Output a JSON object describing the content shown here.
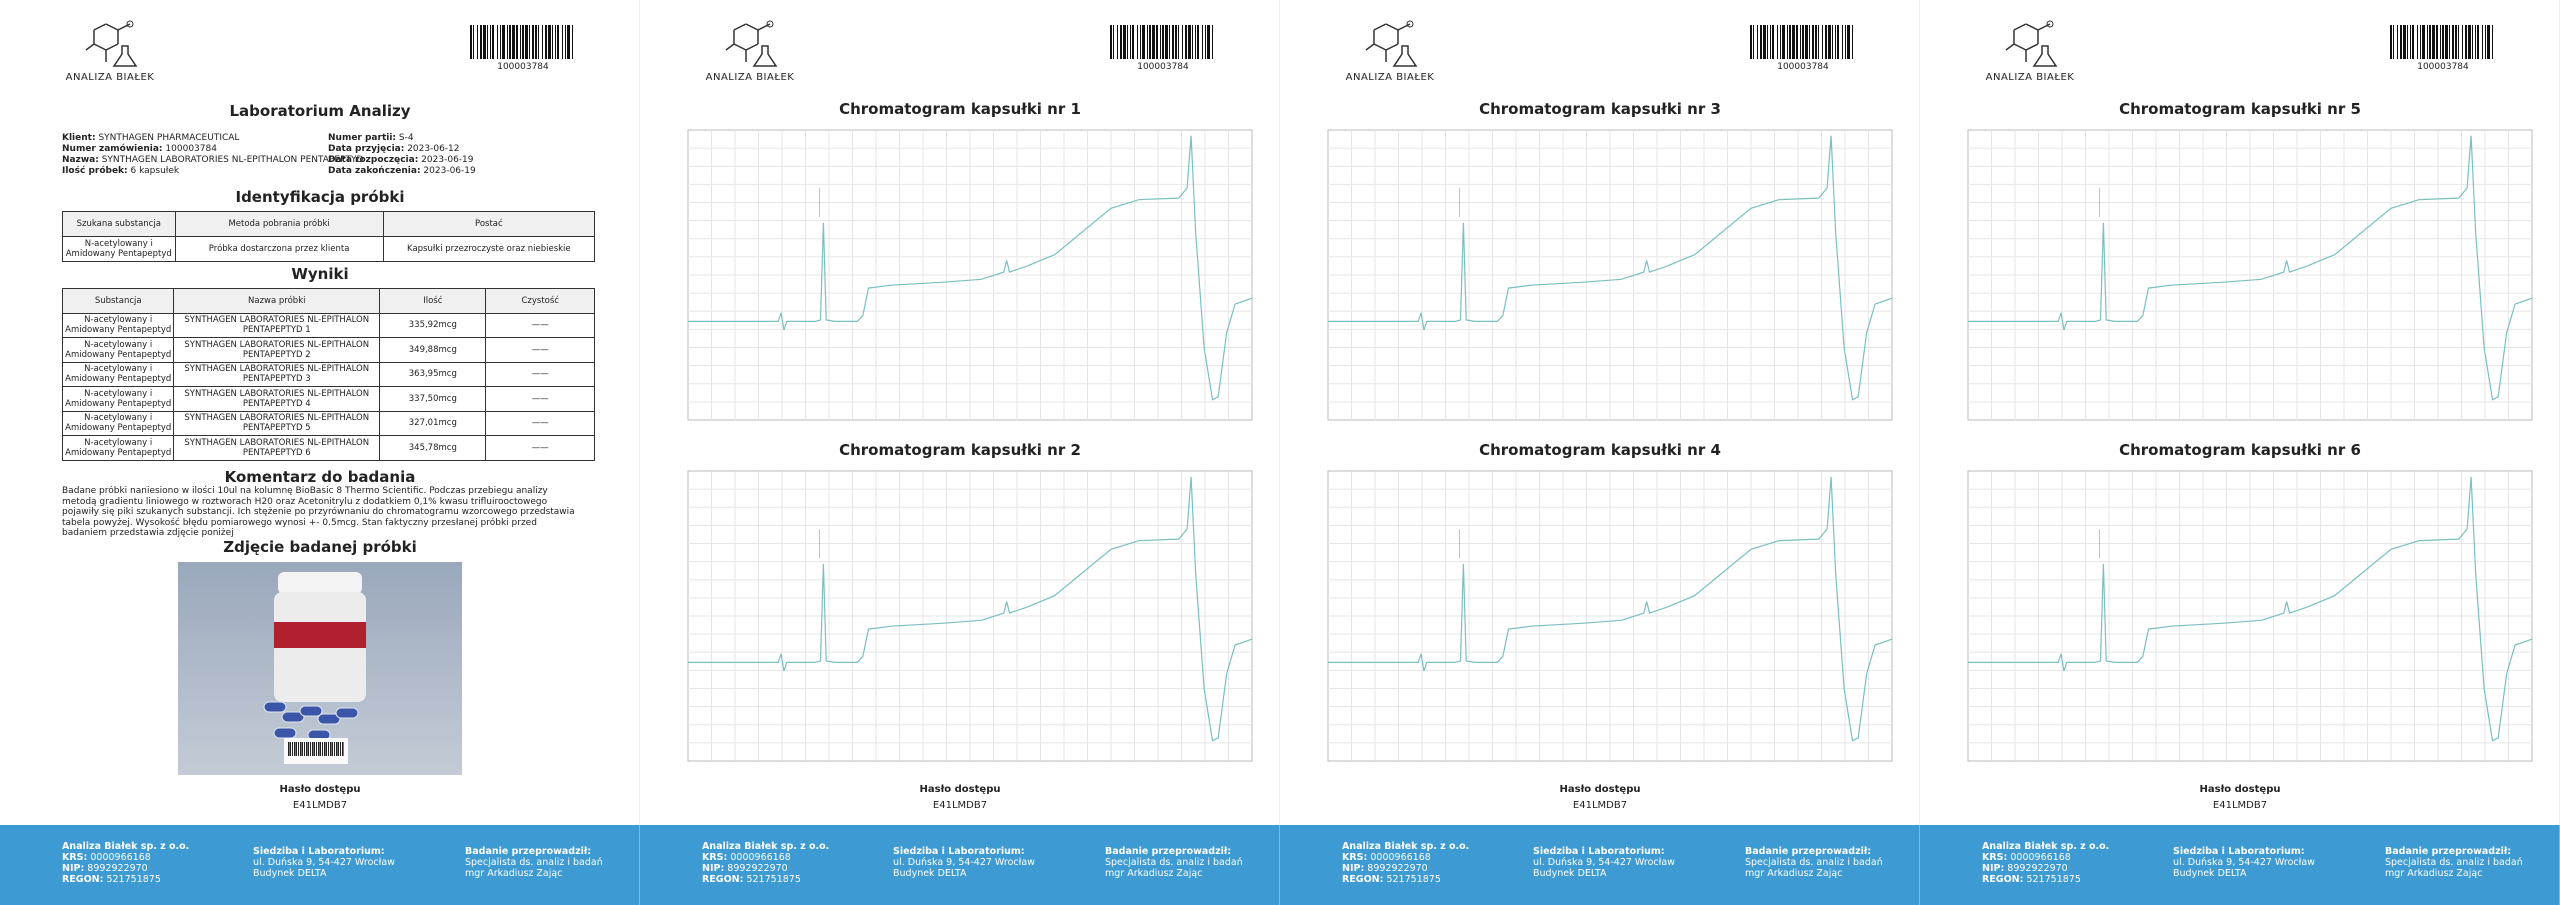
{
  "header": {
    "logo_text": "ANALIZA BIAŁEK",
    "barcode_number": "100003784"
  },
  "report": {
    "title": "Laboratorium Analizy",
    "info_left": [
      {
        "label": "Klient:",
        "value": "SYNTHAGEN PHARMACEUTICAL"
      },
      {
        "label": "Numer zamówienia:",
        "value": "100003784"
      },
      {
        "label": "Nazwa:",
        "value": "SYNTHAGEN LABORATORIES NL-EPITHALON PENTAPEPTYD"
      },
      {
        "label": "Ilość próbek:",
        "value": "6 kapsułek"
      }
    ],
    "info_right": [
      {
        "label": "Numer partii:",
        "value": "S-4"
      },
      {
        "label": "Data przyjęcia:",
        "value": "2023-06-12"
      },
      {
        "label": "Data rozpoczęcia:",
        "value": "2023-06-19"
      },
      {
        "label": "Data zakończenia:",
        "value": "2023-06-19"
      }
    ],
    "identification": {
      "title": "Identyfikacja próbki",
      "headers": [
        "Szukana substancja",
        "Metoda pobrania próbki",
        "Postać"
      ],
      "rows": [
        [
          "N-acetylowany i Amidowany Pentapeptyd",
          "Próbka dostarczona przez klienta",
          "Kapsułki przezroczyste oraz niebieskie"
        ]
      ]
    },
    "results": {
      "title": "Wyniki",
      "headers": [
        "Substancja",
        "Nazwa próbki",
        "Ilość",
        "Czystość"
      ],
      "rows": [
        [
          "N-acetylowany i Amidowany Pentapeptyd",
          "SYNTHAGEN LABORATORIES NL-EPITHALON PENTAPEPTYD 1",
          "335,92mcg",
          "——"
        ],
        [
          "N-acetylowany i Amidowany Pentapeptyd",
          "SYNTHAGEN LABORATORIES NL-EPITHALON PENTAPEPTYD 2",
          "349,88mcg",
          "——"
        ],
        [
          "N-acetylowany i Amidowany Pentapeptyd",
          "SYNTHAGEN LABORATORIES NL-EPITHALON PENTAPEPTYD 3",
          "363,95mcg",
          "——"
        ],
        [
          "N-acetylowany i Amidowany Pentapeptyd",
          "SYNTHAGEN LABORATORIES NL-EPITHALON PENTAPEPTYD 4",
          "337,50mcg",
          "——"
        ],
        [
          "N-acetylowany i Amidowany Pentapeptyd",
          "SYNTHAGEN LABORATORIES NL-EPITHALON PENTAPEPTYD 5",
          "327,01mcg",
          "——"
        ],
        [
          "N-acetylowany i Amidowany Pentapeptyd",
          "SYNTHAGEN LABORATORIES NL-EPITHALON PENTAPEPTYD 6",
          "345,78mcg",
          "——"
        ]
      ]
    },
    "comment": {
      "title": "Komentarz do badania",
      "text": "Badane próbki naniesiono w ilości 10ul na kolumnę BioBasic 8 Thermo Scientific. Podczas przebiegu analizy metodą gradientu liniowego w roztworach H20 oraz Acetonitrylu z dodatkiem 0,1% kwasu trifluirooctowego pojawiły się piki szukanych substancji. Ich stężenie po przyrównaniu do chromatogramu wzorcowego przedstawia tabela powyżej. Wysokość błędu pomiarowego wynosi +- 0.5mcg. Stan faktyczny przesłanej próbki przed badaniem przedstawia zdjęcie poniżej"
    },
    "photo": {
      "title": "Zdjęcie badanej próbki"
    }
  },
  "chromatograms": [
    "Chromatogram kapsułki nr 1",
    "Chromatogram kapsułki nr 2",
    "Chromatogram kapsułki nr 3",
    "Chromatogram kapsułki nr 4",
    "Chromatogram kapsułki nr 5",
    "Chromatogram kapsułki nr 6"
  ],
  "access": {
    "label": "Hasło dostępu",
    "code": "E41LMDB7"
  },
  "footer": {
    "company": "Analiza Białek sp. z o.o.",
    "registry": [
      {
        "label": "KRS:",
        "value": "0000966168"
      },
      {
        "label": "NIP:",
        "value": "8992922970"
      },
      {
        "label": "REGON:",
        "value": "521751875"
      }
    ],
    "address_title": "Siedziba i Laboratorium:",
    "address": [
      "ul. Duńska 9, 54-427 Wrocław",
      "Budynek DELTA"
    ],
    "examiner_title": "Badanie przeprowadził:",
    "examiner": [
      "Specjalista ds. analiz i badań",
      "mgr Arkadiusz Zając"
    ]
  }
}
